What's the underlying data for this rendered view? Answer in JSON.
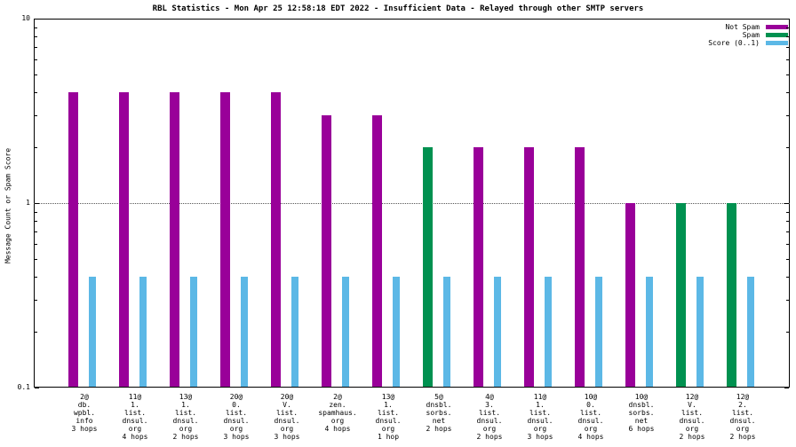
{
  "chart_data": {
    "type": "bar",
    "title": "RBL Statistics - Mon Apr 25 12:58:18 EDT 2022 - Insufficient Data - Relayed through other SMTP servers",
    "ylabel": "Message Count or Spam Score",
    "yscale": "log",
    "ylim": [
      0.1,
      10
    ],
    "ytick_labels": [
      "0.1",
      "1",
      "10"
    ],
    "yticks": [
      0.1,
      1,
      10
    ],
    "minor_ticks": [
      0.2,
      0.3,
      0.4,
      0.5,
      0.6,
      0.7,
      0.8,
      0.9,
      2,
      3,
      4,
      5,
      6,
      7,
      8,
      9
    ],
    "grid_y": [
      1
    ],
    "grid_on": true,
    "legend_position": "top-right",
    "categories": [
      [
        "2@",
        "db.",
        "wpbl.",
        "info",
        "3 hops"
      ],
      [
        "11@",
        "1.",
        "list.",
        "dnsul.",
        "org",
        "4 hops"
      ],
      [
        "13@",
        "1.",
        "list.",
        "dnsul.",
        "org",
        "2 hops"
      ],
      [
        "20@",
        "0.",
        "list.",
        "dnsul.",
        "org",
        "3 hops"
      ],
      [
        "20@",
        "V.",
        "list.",
        "dnsul.",
        "org",
        "3 hops"
      ],
      [
        "2@",
        "zen.",
        "spamhaus.",
        "org",
        "4 hops"
      ],
      [
        "13@",
        "1.",
        "list.",
        "dnsul.",
        "org",
        "1 hop"
      ],
      [
        "5@",
        "dnsbl.",
        "sorbs.",
        "net",
        "2 hops"
      ],
      [
        "4@",
        "3.",
        "list.",
        "dnsul.",
        "org",
        "2 hops"
      ],
      [
        "11@",
        "1.",
        "list.",
        "dnsul.",
        "org",
        "3 hops"
      ],
      [
        "10@",
        "0.",
        "list.",
        "dnsul.",
        "org",
        "4 hops"
      ],
      [
        "10@",
        "dnsbl.",
        "sorbs.",
        "net",
        "6 hops"
      ],
      [
        "12@",
        "V.",
        "list.",
        "dnsul.",
        "org",
        "2 hops"
      ],
      [
        "12@",
        "2.",
        "list.",
        "dnsul.",
        "org",
        "2 hops"
      ]
    ],
    "series": [
      {
        "name": "Not Spam",
        "color": "#990099",
        "values": [
          4,
          4,
          4,
          4,
          4,
          3,
          3,
          null,
          2,
          2,
          2,
          1,
          null,
          null
        ]
      },
      {
        "name": "Spam",
        "color": "#009150",
        "values": [
          null,
          null,
          null,
          null,
          null,
          null,
          null,
          2,
          null,
          null,
          null,
          null,
          1,
          1
        ]
      },
      {
        "name": "Score (0..1)",
        "color": "#5CB8E6",
        "values": [
          0.4,
          0.4,
          0.4,
          0.4,
          0.4,
          0.4,
          0.4,
          0.4,
          0.4,
          0.4,
          0.4,
          0.4,
          0.4,
          0.4
        ]
      }
    ]
  }
}
